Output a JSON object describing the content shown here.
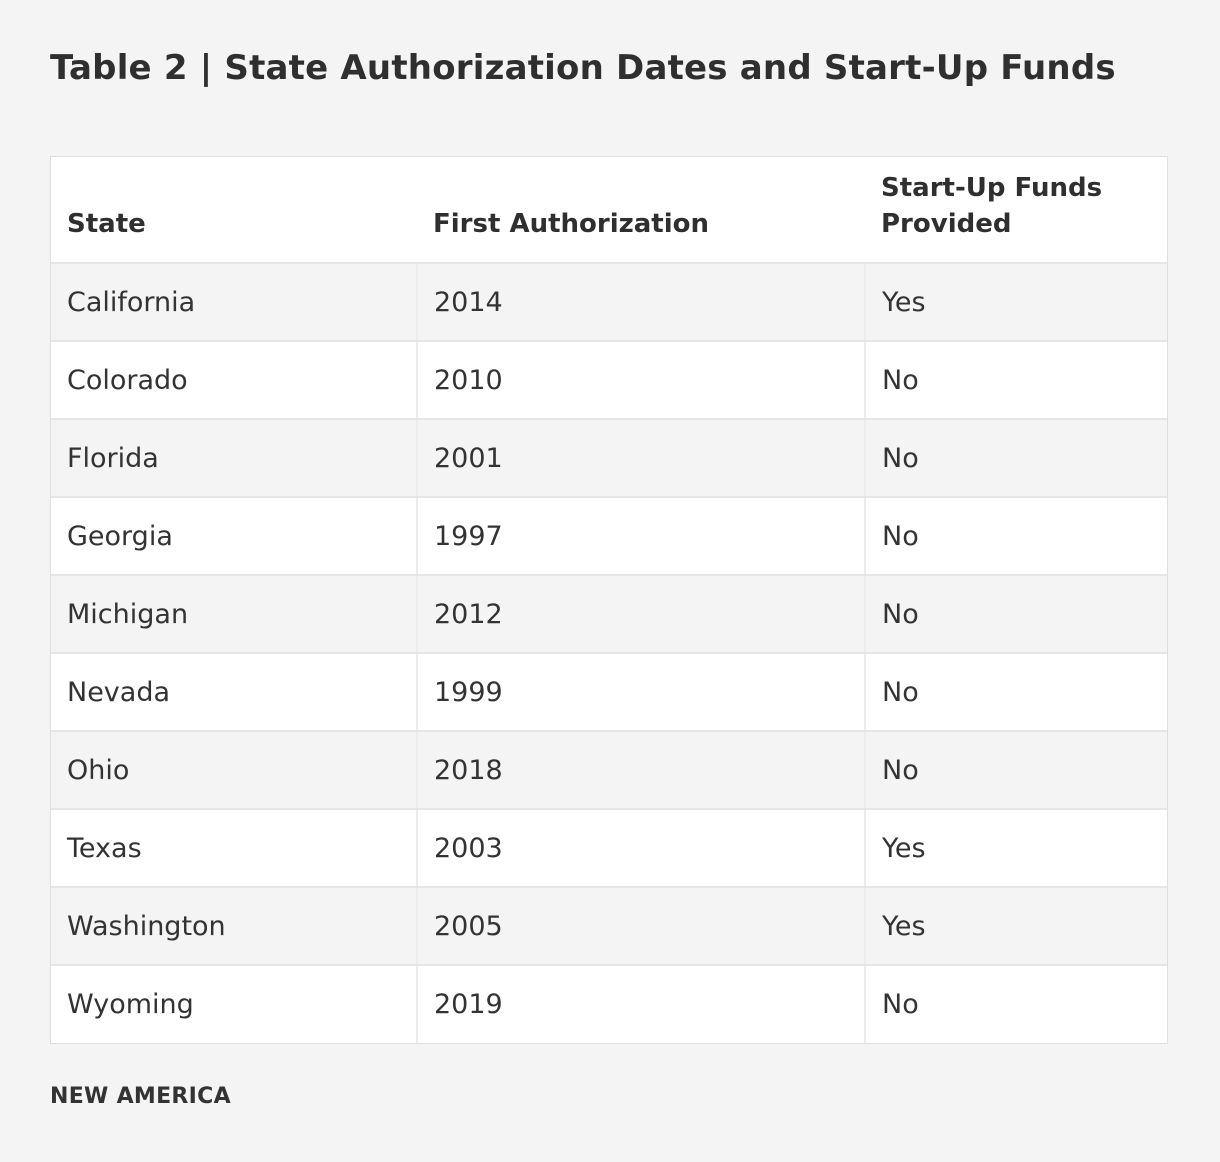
{
  "title": "Table 2 | State Authorization Dates and Start-Up Funds",
  "chart_data": {
    "type": "table",
    "title": "Table 2 | State Authorization Dates and Start-Up Funds",
    "columns": [
      "State",
      "First Authorization",
      "Start-Up Funds Provided"
    ],
    "rows": [
      [
        "California",
        "2014",
        "Yes"
      ],
      [
        "Colorado",
        "2010",
        "No"
      ],
      [
        "Florida",
        "2001",
        "No"
      ],
      [
        "Georgia",
        "1997",
        "No"
      ],
      [
        "Michigan",
        "2012",
        "No"
      ],
      [
        "Nevada",
        "1999",
        "No"
      ],
      [
        "Ohio",
        "2018",
        "No"
      ],
      [
        "Texas",
        "2003",
        "Yes"
      ],
      [
        "Washington",
        "2005",
        "Yes"
      ],
      [
        "Wyoming",
        "2019",
        "No"
      ]
    ]
  },
  "source": "NEW AMERICA"
}
